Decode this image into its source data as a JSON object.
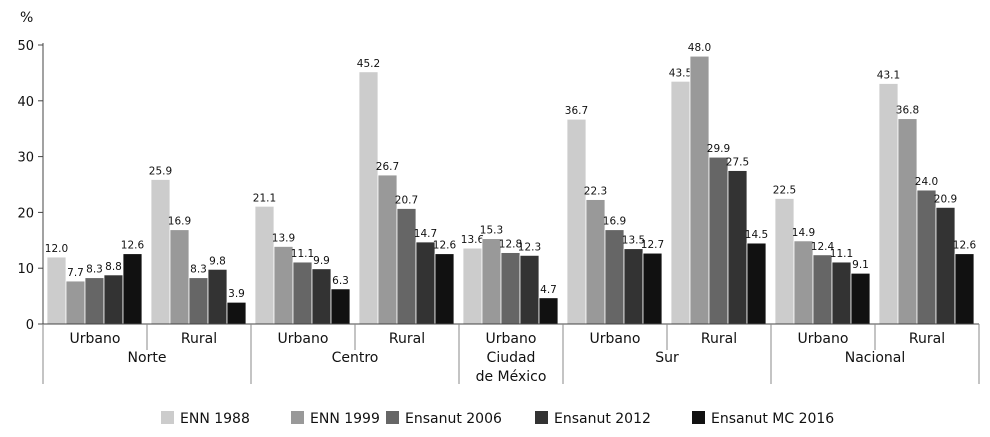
{
  "chart_data": {
    "type": "bar",
    "ylabel": "%",
    "ylim": [
      0,
      50
    ],
    "yticks": [
      0,
      10,
      20,
      30,
      40,
      50
    ],
    "grid": false,
    "legend_position": "bottom",
    "series": [
      {
        "name": "ENN 1988",
        "color": "#cccccc"
      },
      {
        "name": "ENN 1999",
        "color": "#999999"
      },
      {
        "name": "Ensanut 2006",
        "color": "#666666"
      },
      {
        "name": "Ensanut 2012",
        "color": "#333333"
      },
      {
        "name": "Ensanut MC 2016",
        "color": "#111111"
      }
    ],
    "groups": [
      {
        "area": "Urbano",
        "region": "Norte",
        "values": [
          12.0,
          7.7,
          8.3,
          8.8,
          12.6
        ],
        "labels": [
          "12.0",
          "7.7",
          "8.3",
          "8.8",
          "12.6"
        ]
      },
      {
        "area": "Rural",
        "region": "Norte",
        "values": [
          25.9,
          16.9,
          8.3,
          9.8,
          3.9
        ],
        "labels": [
          "25.9",
          "16.9",
          "8.3",
          "9.8",
          "3.9"
        ]
      },
      {
        "area": "Urbano",
        "region": "Centro",
        "values": [
          21.1,
          13.9,
          11.1,
          9.9,
          6.3
        ],
        "labels": [
          "21.1",
          "13.9",
          "11.1",
          "9.9",
          "6.3"
        ]
      },
      {
        "area": "Rural",
        "region": "Centro",
        "values": [
          45.2,
          26.7,
          20.7,
          14.7,
          12.6
        ],
        "labels": [
          "45.2",
          "26.7",
          "20.7",
          "14.7",
          "12.6"
        ]
      },
      {
        "area": "Urbano",
        "region": "Ciudad de México",
        "values": [
          13.6,
          15.3,
          12.8,
          12.3,
          4.7
        ],
        "labels": [
          "13.6",
          "15.3",
          "12.8",
          "12.3",
          "4.7"
        ]
      },
      {
        "area": "Urbano",
        "region": "Sur",
        "values": [
          36.7,
          22.3,
          16.9,
          13.5,
          12.7
        ],
        "labels": [
          "36.7",
          "22.3",
          "16.9",
          "13.5",
          "12.7"
        ]
      },
      {
        "area": "Rural",
        "region": "Sur",
        "values": [
          43.5,
          48.0,
          29.9,
          27.5,
          14.5
        ],
        "labels": [
          "43.5",
          "48.0",
          "29.9",
          "27.5",
          "14.5"
        ]
      },
      {
        "area": "Urbano",
        "region": "Nacional",
        "values": [
          22.5,
          14.9,
          12.4,
          11.1,
          9.1
        ],
        "labels": [
          "22.5",
          "14.9",
          "12.4",
          "11.1",
          "9.1"
        ]
      },
      {
        "area": "Rural",
        "region": "Nacional",
        "values": [
          43.1,
          36.8,
          24.0,
          20.9,
          12.6
        ],
        "labels": [
          "43.1",
          "36.8",
          "24.0",
          "20.9",
          "12.6"
        ]
      }
    ],
    "regions": [
      {
        "name": "Norte",
        "group_span": [
          0,
          1
        ]
      },
      {
        "name": "Centro",
        "group_span": [
          2,
          3
        ]
      },
      {
        "name": "Ciudad\nde México",
        "group_span": [
          4,
          4
        ]
      },
      {
        "name": "Sur",
        "group_span": [
          5,
          6
        ]
      },
      {
        "name": "Nacional",
        "group_span": [
          7,
          8
        ]
      }
    ]
  }
}
